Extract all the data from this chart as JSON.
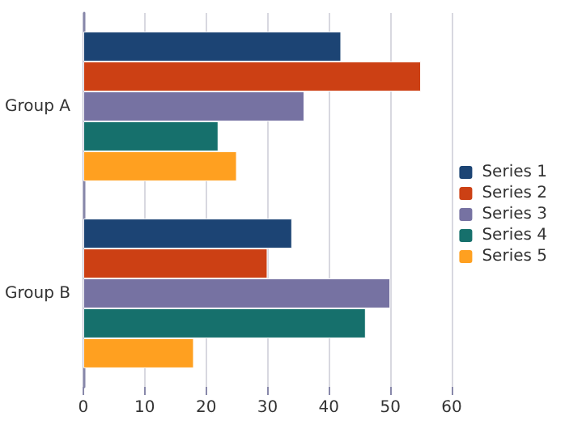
{
  "chart_data": {
    "type": "bar",
    "orientation": "horizontal",
    "categories": [
      "Group A",
      "Group B"
    ],
    "series": [
      {
        "name": "Series 1",
        "color": "#1c4474",
        "values": [
          42,
          34
        ]
      },
      {
        "name": "Series 2",
        "color": "#cc4014",
        "values": [
          55,
          30
        ]
      },
      {
        "name": "Series 3",
        "color": "#7672a2",
        "values": [
          36,
          50
        ]
      },
      {
        "name": "Series 4",
        "color": "#16706c",
        "values": [
          22,
          46
        ]
      },
      {
        "name": "Series 5",
        "color": "#ffa020",
        "values": [
          25,
          18
        ]
      }
    ],
    "xlim": [
      0,
      60
    ],
    "xticks": [
      0,
      10,
      20,
      30,
      40,
      50,
      60
    ],
    "grid": "x",
    "legend": "right"
  }
}
